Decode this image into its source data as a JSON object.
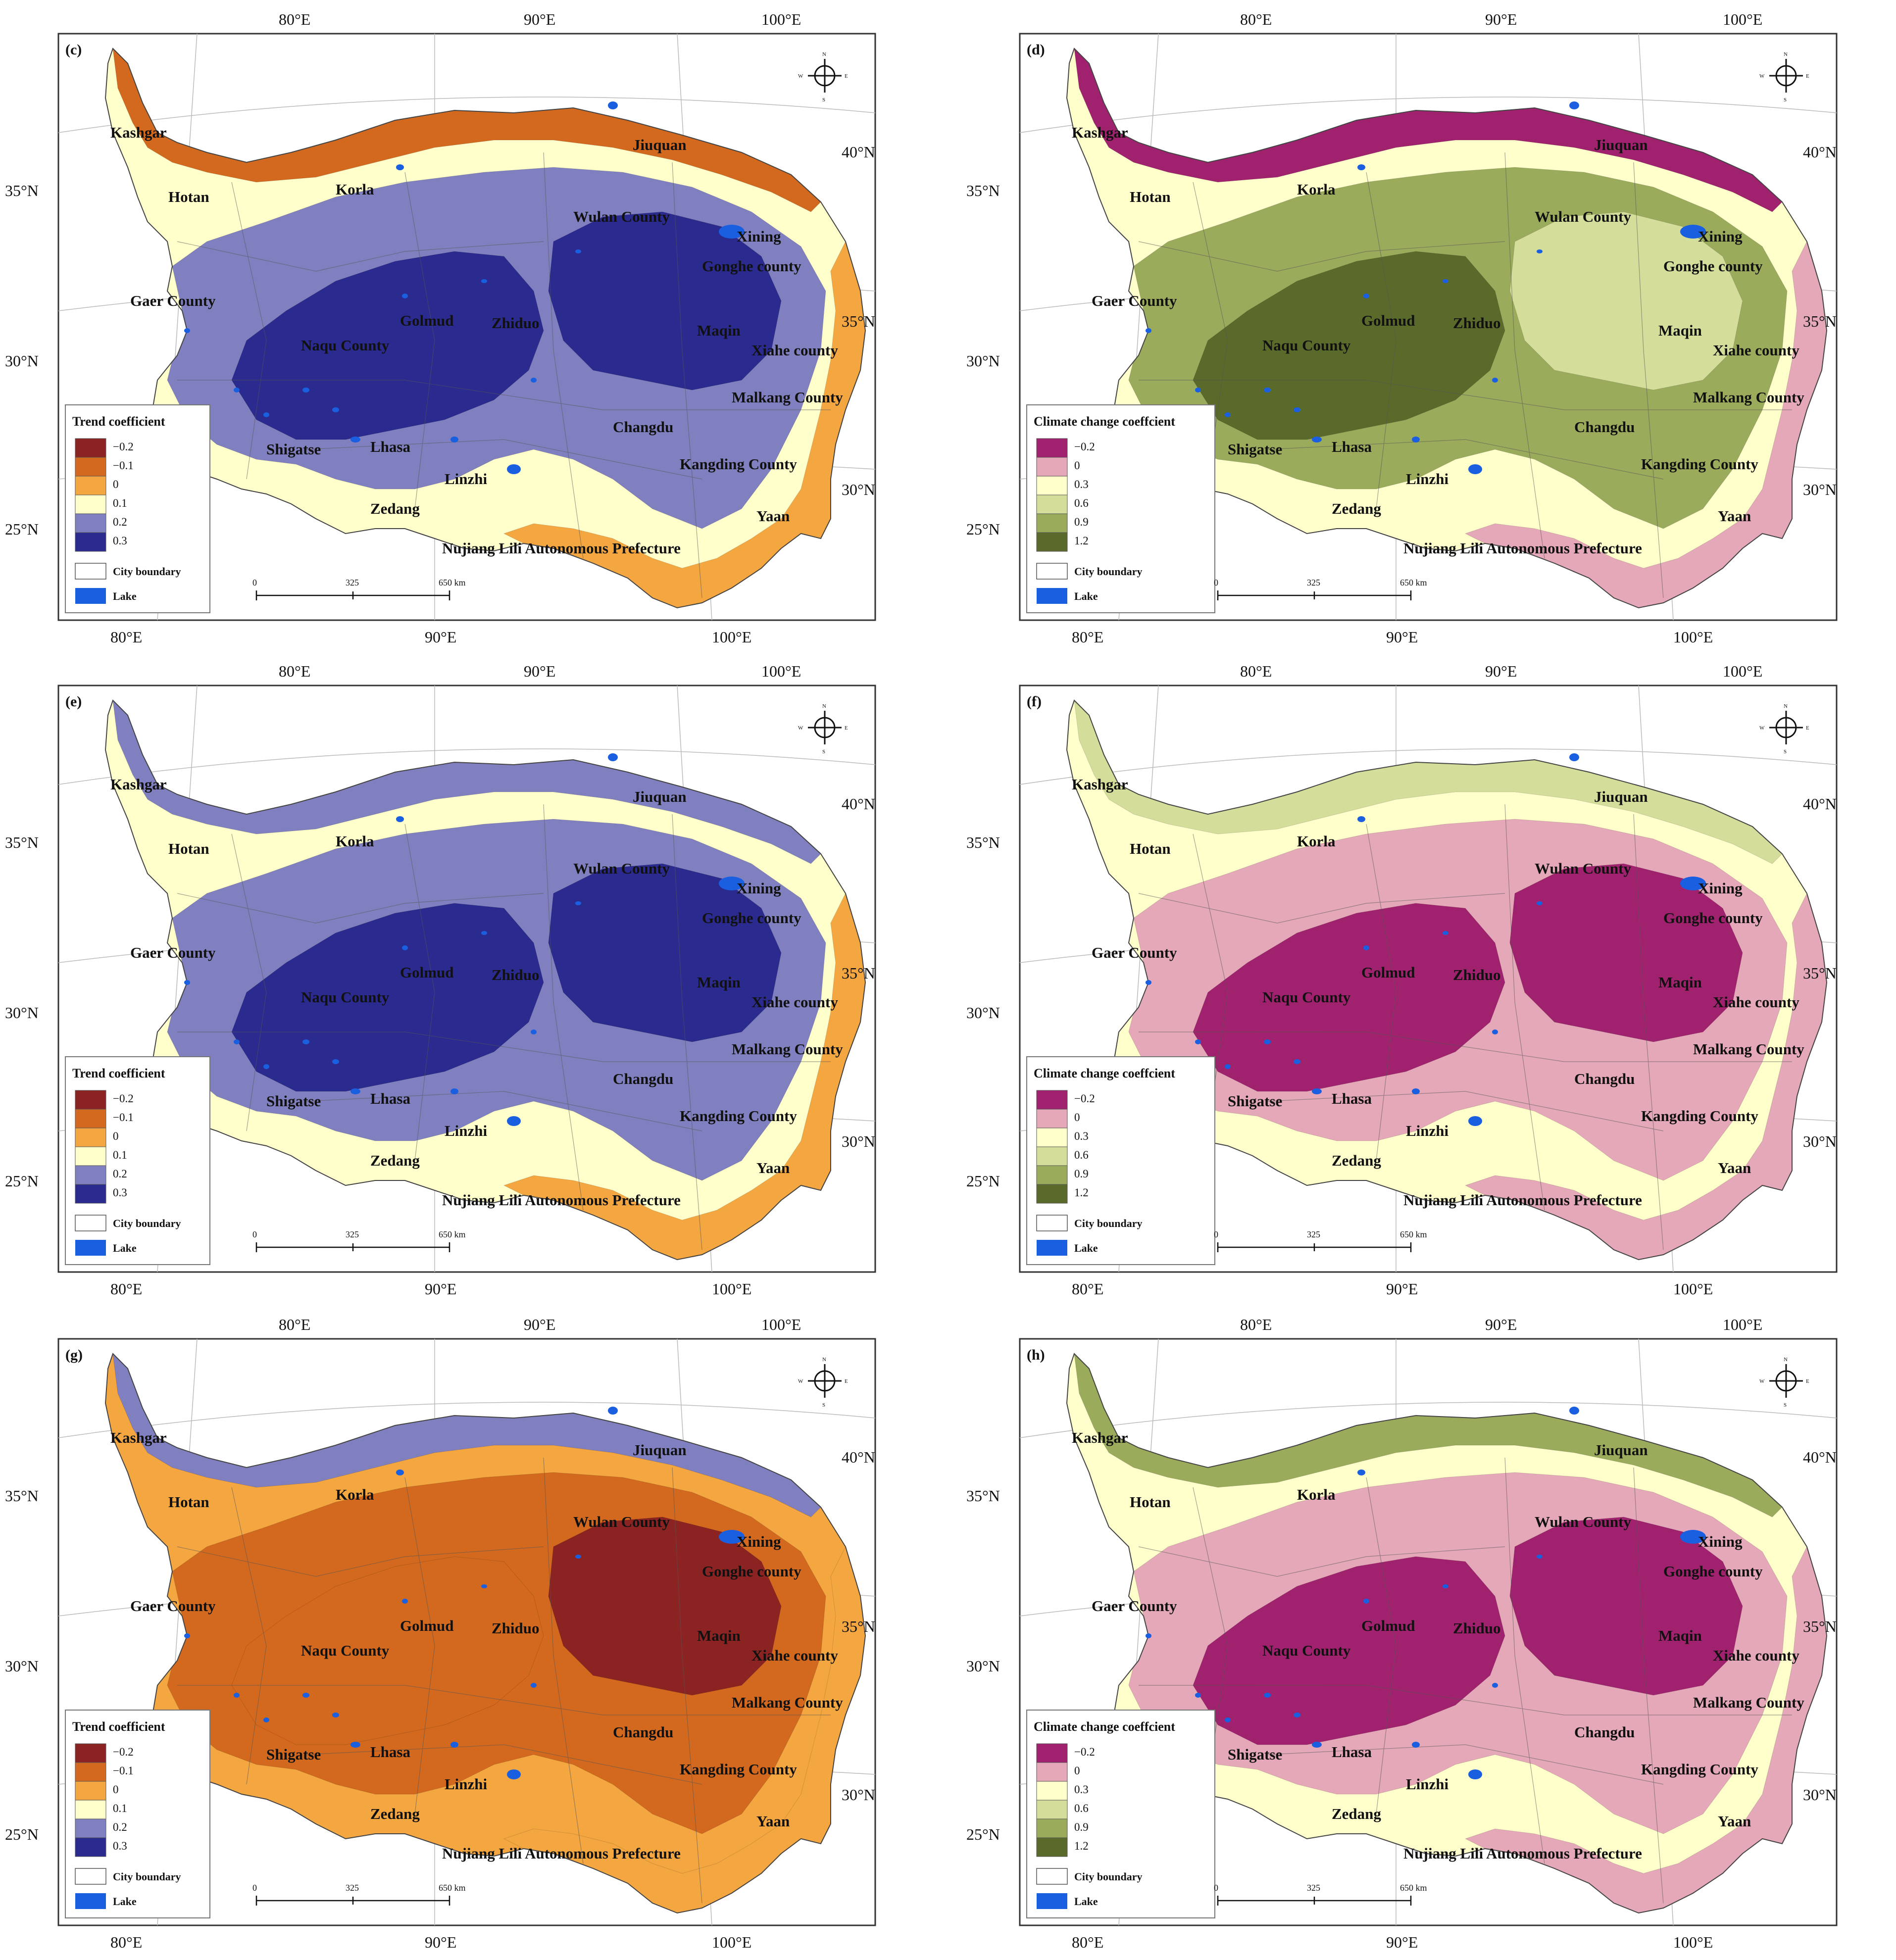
{
  "panels": [
    {
      "label": "(c)",
      "legend_title": "Trend coefficient",
      "classes": [
        {
          "label": "−0.2",
          "color": "#8b2323"
        },
        {
          "label": "−0.1",
          "color": "#d2691e"
        },
        {
          "label": "0",
          "color": "#f4a640"
        },
        {
          "label": "0.1",
          "color": "#ffffcc"
        },
        {
          "label": "0.2",
          "color": "#8080c0"
        },
        {
          "label": "0.3",
          "color": "#2a2a8f"
        }
      ],
      "zones": [
        {
          "cls": 3,
          "region": "plateau"
        },
        {
          "cls": 1,
          "region": "north-rim"
        },
        {
          "cls": 2,
          "region": "south-rim"
        },
        {
          "cls": 4,
          "region": "central-belt"
        },
        {
          "cls": 5,
          "region": "core-west"
        },
        {
          "cls": 5,
          "region": "core-east"
        }
      ]
    },
    {
      "label": "(d)",
      "legend_title": "Climate change coeffcient",
      "classes": [
        {
          "label": "−0.2",
          "color": "#a0226e"
        },
        {
          "label": "0",
          "color": "#e5a8b8"
        },
        {
          "label": "0.3",
          "color": "#ffffcc"
        },
        {
          "label": "0.6",
          "color": "#d4dd9a"
        },
        {
          "label": "0.9",
          "color": "#9aab5c"
        },
        {
          "label": "1.2",
          "color": "#5a6a2a"
        }
      ],
      "zones": [
        {
          "cls": 2,
          "region": "plateau"
        },
        {
          "cls": 0,
          "region": "north-rim"
        },
        {
          "cls": 1,
          "region": "south-rim"
        },
        {
          "cls": 4,
          "region": "central-belt"
        },
        {
          "cls": 5,
          "region": "core-west"
        },
        {
          "cls": 3,
          "region": "core-east"
        }
      ]
    },
    {
      "label": "(e)",
      "legend_title": "Trend coefficient",
      "classes": [
        {
          "label": "−0.2",
          "color": "#8b2323"
        },
        {
          "label": "−0.1",
          "color": "#d2691e"
        },
        {
          "label": "0",
          "color": "#f4a640"
        },
        {
          "label": "0.1",
          "color": "#ffffcc"
        },
        {
          "label": "0.2",
          "color": "#8080c0"
        },
        {
          "label": "0.3",
          "color": "#2a2a8f"
        }
      ],
      "zones": [
        {
          "cls": 3,
          "region": "plateau"
        },
        {
          "cls": 4,
          "region": "north-rim"
        },
        {
          "cls": 2,
          "region": "south-rim"
        },
        {
          "cls": 4,
          "region": "central-belt"
        },
        {
          "cls": 5,
          "region": "core-west"
        },
        {
          "cls": 5,
          "region": "core-east"
        }
      ]
    },
    {
      "label": "(f)",
      "legend_title": "Climate change coeffcient",
      "classes": [
        {
          "label": "−0.2",
          "color": "#a0226e"
        },
        {
          "label": "0",
          "color": "#e5a8b8"
        },
        {
          "label": "0.3",
          "color": "#ffffcc"
        },
        {
          "label": "0.6",
          "color": "#d4dd9a"
        },
        {
          "label": "0.9",
          "color": "#9aab5c"
        },
        {
          "label": "1.2",
          "color": "#5a6a2a"
        }
      ],
      "zones": [
        {
          "cls": 2,
          "region": "plateau"
        },
        {
          "cls": 3,
          "region": "north-rim"
        },
        {
          "cls": 1,
          "region": "south-rim"
        },
        {
          "cls": 1,
          "region": "central-belt"
        },
        {
          "cls": 0,
          "region": "core-west"
        },
        {
          "cls": 0,
          "region": "core-east"
        }
      ]
    },
    {
      "label": "(g)",
      "legend_title": "Trend coefficient",
      "classes": [
        {
          "label": "−0.2",
          "color": "#8b2323"
        },
        {
          "label": "−0.1",
          "color": "#d2691e"
        },
        {
          "label": "0",
          "color": "#f4a640"
        },
        {
          "label": "0.1",
          "color": "#ffffcc"
        },
        {
          "label": "0.2",
          "color": "#8080c0"
        },
        {
          "label": "0.3",
          "color": "#2a2a8f"
        }
      ],
      "zones": [
        {
          "cls": 2,
          "region": "plateau"
        },
        {
          "cls": 4,
          "region": "north-rim"
        },
        {
          "cls": 2,
          "region": "south-rim"
        },
        {
          "cls": 1,
          "region": "central-belt"
        },
        {
          "cls": 1,
          "region": "core-west"
        },
        {
          "cls": 0,
          "region": "core-east"
        }
      ]
    },
    {
      "label": "(h)",
      "legend_title": "Climate change coeffcient",
      "classes": [
        {
          "label": "−0.2",
          "color": "#a0226e"
        },
        {
          "label": "0",
          "color": "#e5a8b8"
        },
        {
          "label": "0.3",
          "color": "#ffffcc"
        },
        {
          "label": "0.6",
          "color": "#d4dd9a"
        },
        {
          "label": "0.9",
          "color": "#9aab5c"
        },
        {
          "label": "1.2",
          "color": "#5a6a2a"
        }
      ],
      "zones": [
        {
          "cls": 2,
          "region": "plateau"
        },
        {
          "cls": 4,
          "region": "north-rim"
        },
        {
          "cls": 1,
          "region": "south-rim"
        },
        {
          "cls": 1,
          "region": "central-belt"
        },
        {
          "cls": 0,
          "region": "core-west"
        },
        {
          "cls": 0,
          "region": "core-east"
        }
      ]
    }
  ],
  "legend_extra": {
    "boundary": "City boundary",
    "lake": "Lake",
    "lake_color": "#1a5fe0",
    "boundary_color": "#ffffff"
  },
  "scalebar": [
    "0",
    "325",
    "650 km"
  ],
  "compass": [
    "N",
    "S",
    "W",
    "E"
  ],
  "top_lon_labels": [
    "80°E",
    "90°E",
    "100°E"
  ],
  "bottom_lon_labels": [
    "80°E",
    "90°E",
    "100°E"
  ],
  "left_lat_labels": [
    "35°N",
    "30°N",
    "25°N"
  ],
  "right_lat_labels": [
    "40°N",
    "35°N",
    "30°N"
  ],
  "cities": [
    "Kashgar",
    "Hotan",
    "Korla",
    "Jiuquan",
    "Wulan County",
    "Xining",
    "Gonghe county",
    "Gaer County",
    "Golmud",
    "Zhiduo",
    "Xiahe county",
    "Maqin",
    "Naqu County",
    "Malkang County",
    "Changdu",
    "Shigatse",
    "Lhasa",
    "Kangding County",
    "Linzhi",
    "Zedang",
    "Yaan",
    "Nujiang Lili Autonomous Prefecture"
  ]
}
